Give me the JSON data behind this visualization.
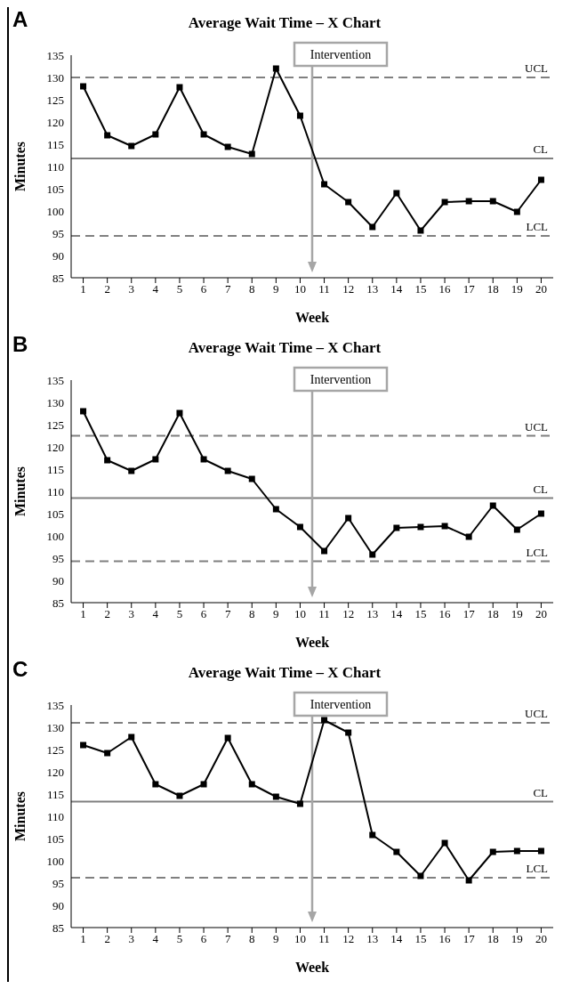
{
  "chart_data": [
    {
      "type": "line",
      "title": "Average Wait Time – X Chart",
      "xlabel": "Week",
      "ylabel": "Minutes",
      "annotations": [
        "A"
      ],
      "x": [
        1,
        2,
        3,
        4,
        5,
        6,
        7,
        8,
        9,
        10,
        11,
        12,
        13,
        14,
        15,
        16,
        17,
        18,
        19,
        20
      ],
      "xlim": [
        0.5,
        20.5
      ],
      "xticks": [
        1,
        2,
        3,
        4,
        5,
        6,
        7,
        8,
        9,
        10,
        11,
        12,
        13,
        14,
        15,
        16,
        17,
        18,
        19,
        20
      ],
      "ylim": [
        85,
        135
      ],
      "yticks": [
        85,
        90,
        95,
        100,
        105,
        110,
        115,
        120,
        125,
        130,
        135
      ],
      "grid": false,
      "legend": false,
      "marker": "square",
      "line_style": "solid",
      "series": [
        {
          "color": "#000000",
          "values": [
            128,
            117,
            114.6,
            117.2,
            127.8,
            117.2,
            114.4,
            112.8,
            132,
            121.4,
            106,
            102,
            96.4,
            104,
            95.6,
            102,
            102.2,
            102.2,
            99.8,
            107
          ]
        }
      ],
      "ref_lines": [
        {
          "axis": "y",
          "value": 130,
          "label": "UCL",
          "color": "#808080",
          "line_style": "dashed"
        },
        {
          "axis": "y",
          "value": 111.8,
          "label": "CL",
          "color": "#808080",
          "line_style": "solid"
        },
        {
          "axis": "y",
          "value": 94.4,
          "label": "LCL",
          "color": "#808080",
          "line_style": "dashed"
        },
        {
          "axis": "x",
          "value": 10.5,
          "label": "Intervention",
          "color": "#a6a6a6",
          "line_style": "solid"
        }
      ]
    },
    {
      "type": "line",
      "title": "Average Wait Time – X Chart",
      "xlabel": "Week",
      "ylabel": "Minutes",
      "annotations": [
        "B"
      ],
      "x": [
        1,
        2,
        3,
        4,
        5,
        6,
        7,
        8,
        9,
        10,
        11,
        12,
        13,
        14,
        15,
        16,
        17,
        18,
        19,
        20
      ],
      "xlim": [
        0.5,
        20.5
      ],
      "xticks": [
        1,
        2,
        3,
        4,
        5,
        6,
        7,
        8,
        9,
        10,
        11,
        12,
        13,
        14,
        15,
        16,
        17,
        18,
        19,
        20
      ],
      "ylim": [
        85,
        135
      ],
      "yticks": [
        85,
        90,
        95,
        100,
        105,
        110,
        115,
        120,
        125,
        130,
        135
      ],
      "grid": false,
      "legend": false,
      "marker": "square",
      "line_style": "solid",
      "series": [
        {
          "color": "#000000",
          "values": [
            128,
            117,
            114.6,
            117.2,
            127.6,
            117.2,
            114.6,
            112.8,
            106,
            102,
            96.6,
            104,
            95.8,
            101.8,
            102,
            102.2,
            99.8,
            106.8,
            101.4,
            105
          ]
        }
      ],
      "ref_lines": [
        {
          "axis": "y",
          "value": 122.5,
          "label": "UCL",
          "color": "#808080",
          "line_style": "dashed"
        },
        {
          "axis": "y",
          "value": 108.5,
          "label": "CL",
          "color": "#808080",
          "line_style": "solid"
        },
        {
          "axis": "y",
          "value": 94.3,
          "label": "LCL",
          "color": "#808080",
          "line_style": "dashed"
        },
        {
          "axis": "x",
          "value": 10.5,
          "label": "Intervention",
          "color": "#a6a6a6",
          "line_style": "solid"
        }
      ]
    },
    {
      "type": "line",
      "title": "Average Wait Time – X Chart",
      "xlabel": "Week",
      "ylabel": "Minutes",
      "annotations": [
        "C"
      ],
      "x": [
        1,
        2,
        3,
        4,
        5,
        6,
        7,
        8,
        9,
        10,
        11,
        12,
        13,
        14,
        15,
        16,
        17,
        18,
        19,
        20
      ],
      "xlim": [
        0.5,
        20.5
      ],
      "xticks": [
        1,
        2,
        3,
        4,
        5,
        6,
        7,
        8,
        9,
        10,
        11,
        12,
        13,
        14,
        15,
        16,
        17,
        18,
        19,
        20
      ],
      "ylim": [
        85,
        135
      ],
      "yticks": [
        85,
        90,
        95,
        100,
        105,
        110,
        115,
        120,
        125,
        130,
        135
      ],
      "grid": false,
      "legend": false,
      "marker": "square",
      "line_style": "solid",
      "series": [
        {
          "color": "#000000",
          "values": [
            126,
            124.2,
            127.8,
            117.2,
            114.6,
            117.2,
            127.6,
            117.2,
            114.4,
            112.8,
            131.6,
            128.8,
            105.8,
            102,
            96.6,
            104,
            95.6,
            102,
            102.2,
            102.2
          ]
        }
      ],
      "ref_lines": [
        {
          "axis": "y",
          "value": 131,
          "label": "UCL",
          "color": "#808080",
          "line_style": "dashed"
        },
        {
          "axis": "y",
          "value": 113.3,
          "label": "CL",
          "color": "#808080",
          "line_style": "solid"
        },
        {
          "axis": "y",
          "value": 96.2,
          "label": "LCL",
          "color": "#808080",
          "line_style": "dashed"
        },
        {
          "axis": "x",
          "value": 10.5,
          "label": "Intervention",
          "color": "#a6a6a6",
          "line_style": "solid"
        }
      ]
    }
  ]
}
